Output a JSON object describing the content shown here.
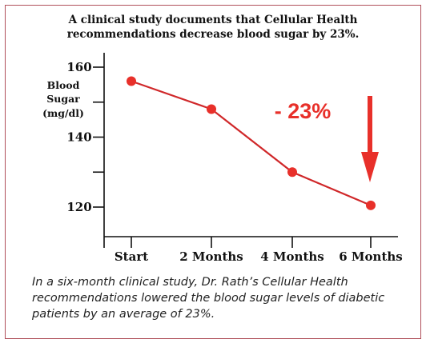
{
  "title_line1": "A clinical study documents that Cellular Health",
  "title_line2": "recommendations decrease blood sugar by 23%.",
  "caption": "In a six-month clinical study, Dr. Rath’s Cellular Health recommendations lowered the blood sugar levels of diabetic patients by an average of 23%.",
  "colors": {
    "accent": "#e8302a",
    "line": "#d0282a",
    "border": "#b0505a"
  },
  "chart_data": {
    "type": "line",
    "title": "A clinical study documents that Cellular Health recommendations decrease blood sugar by 23%.",
    "categories": [
      "Start",
      "2 Months",
      "4 Months",
      "6 Months"
    ],
    "series": [
      {
        "values": [
          156,
          148,
          130,
          120.5
        ]
      }
    ],
    "ylabel_lines": [
      "Blood",
      "Sugar",
      "(mg/dl)"
    ],
    "ylim": [
      112,
      164
    ],
    "yticks": [
      120,
      130,
      140,
      150,
      160
    ],
    "ytick_labels": [
      "120",
      "",
      "140",
      "",
      "160"
    ],
    "annotation": "- 23%",
    "grid": false,
    "legend": "none"
  }
}
